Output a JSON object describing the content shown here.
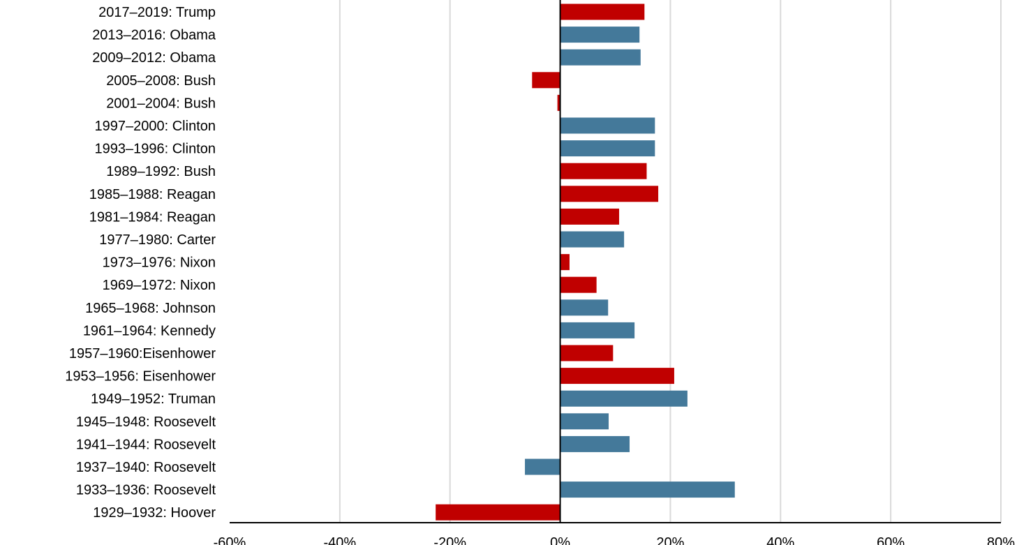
{
  "chart_data": {
    "type": "bar",
    "orientation": "horizontal",
    "title": "",
    "xlabel": "",
    "ylabel": "",
    "xlim": [
      -60,
      80
    ],
    "x_ticks": [
      -60,
      -40,
      -20,
      0,
      20,
      40,
      60,
      80
    ],
    "x_tick_labels": [
      "-60%",
      "-40%",
      "-20%",
      "0%",
      "20%",
      "40%",
      "60%",
      "80%"
    ],
    "grid": true,
    "legend": "none",
    "colors": {
      "red": "#c00000",
      "blue": "#44799a"
    },
    "categories": [
      "2017–2019: Trump",
      "2013–2016: Obama",
      "2009–2012: Obama",
      "2005–2008: Bush",
      "2001–2004: Bush",
      "1997–2000: Clinton",
      "1993–1996: Clinton",
      "1989–1992: Bush",
      "1985–1988: Reagan",
      "1981–1984: Reagan",
      "1977–1980: Carter",
      "1973–1976: Nixon",
      "1969–1972: Nixon",
      "1965–1968: Johnson",
      "1961–1964: Kennedy",
      "1957–1960:Eisenhower",
      "1953–1956: Eisenhower",
      "1949–1952: Truman",
      "1945–1948: Roosevelt",
      "1941–1944: Roosevelt",
      "1937–1940: Roosevelt",
      "1933–1936: Roosevelt",
      "1929–1932: Hoover"
    ],
    "values": [
      15.3,
      14.4,
      14.6,
      -5.1,
      -0.5,
      17.2,
      17.2,
      15.7,
      17.8,
      10.7,
      11.6,
      1.7,
      6.6,
      8.7,
      13.5,
      9.6,
      20.7,
      23.1,
      8.8,
      12.6,
      -6.4,
      31.7,
      -22.6
    ],
    "bar_colors": [
      "red",
      "blue",
      "blue",
      "red",
      "red",
      "blue",
      "blue",
      "red",
      "red",
      "red",
      "blue",
      "red",
      "red",
      "blue",
      "blue",
      "red",
      "red",
      "blue",
      "blue",
      "blue",
      "blue",
      "blue",
      "red"
    ]
  }
}
